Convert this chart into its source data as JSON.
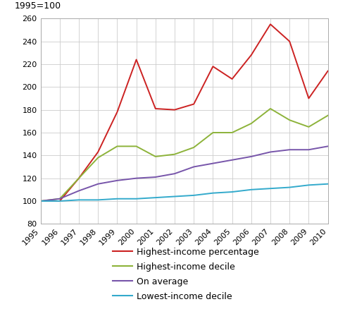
{
  "years": [
    1995,
    1996,
    1997,
    1998,
    1999,
    2000,
    2001,
    2002,
    2003,
    2004,
    2005,
    2006,
    2007,
    2008,
    2009,
    2010
  ],
  "highest_income_percentage": [
    100,
    100,
    120,
    143,
    178,
    224,
    181,
    180,
    185,
    218,
    207,
    228,
    255,
    240,
    190,
    214
  ],
  "highest_income_decile": [
    100,
    102,
    120,
    138,
    148,
    148,
    139,
    141,
    147,
    160,
    160,
    168,
    181,
    171,
    165,
    175
  ],
  "on_average": [
    100,
    102,
    109,
    115,
    118,
    120,
    121,
    124,
    130,
    133,
    136,
    139,
    143,
    145,
    145,
    148
  ],
  "lowest_income_decile": [
    100,
    100,
    101,
    101,
    102,
    102,
    103,
    104,
    105,
    107,
    108,
    110,
    111,
    112,
    114,
    115
  ],
  "line_colors": {
    "highest_income_percentage": "#cc2222",
    "highest_income_decile": "#8db33a",
    "on_average": "#7755aa",
    "lowest_income_decile": "#33aacc"
  },
  "legend_labels": [
    "Highest-income percentage",
    "Highest-income decile",
    "On average",
    "Lowest-income decile"
  ],
  "ylabel_text": "1995=100",
  "ylim": [
    80,
    260
  ],
  "yticks": [
    80,
    100,
    120,
    140,
    160,
    180,
    200,
    220,
    240,
    260
  ],
  "background_color": "#ffffff",
  "grid_color": "#cccccc",
  "tick_fontsize": 8,
  "legend_fontsize": 9
}
